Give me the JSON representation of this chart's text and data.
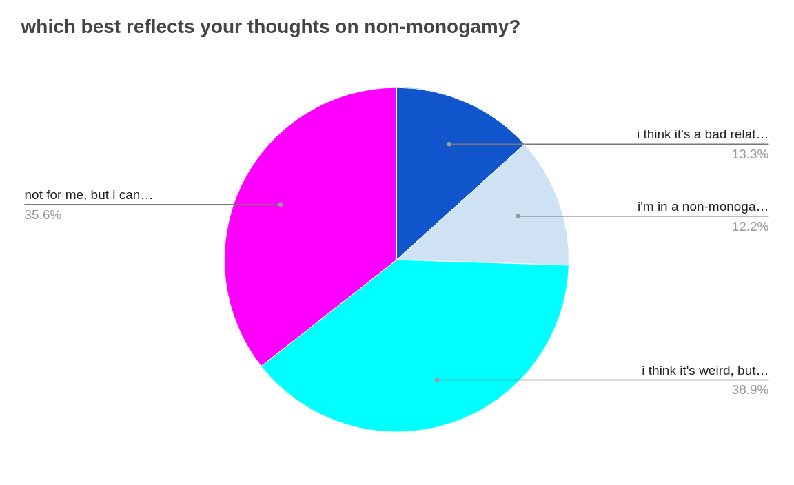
{
  "chart_data": {
    "type": "pie",
    "title": "which best reflects your thoughts on non-monogamy?",
    "categories": [
      "i think it's a bad relat…",
      "i'm in a non-monoga…",
      "i think it's weird, but…",
      "not for me, but i can…"
    ],
    "values": [
      13.3,
      12.2,
      38.9,
      35.6
    ],
    "value_labels": [
      "13.3%",
      "12.2%",
      "38.9%",
      "35.6%"
    ],
    "colors": [
      "#1155cc",
      "#cfe2f3",
      "#00ffff",
      "#ff00ff"
    ]
  }
}
